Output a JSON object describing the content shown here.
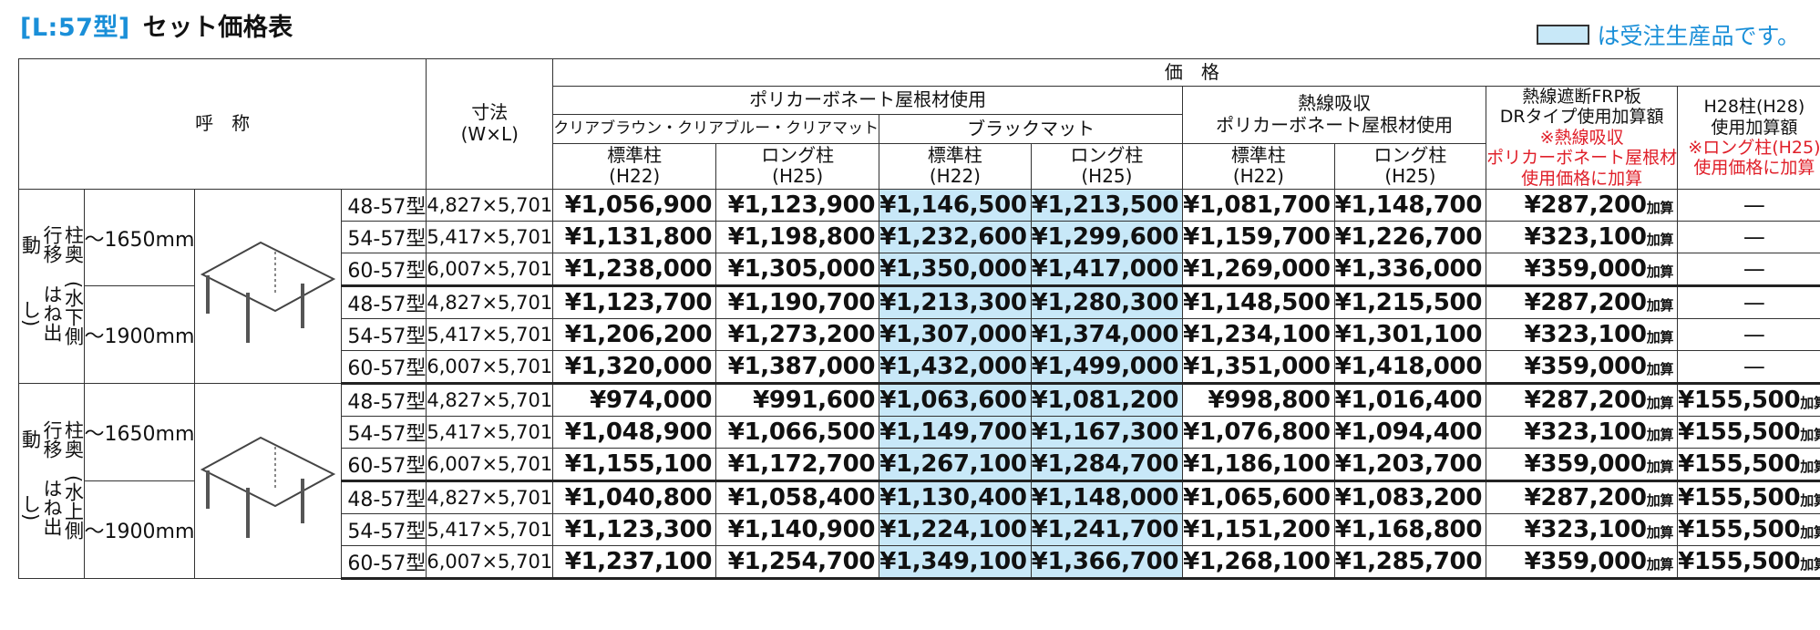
{
  "title": {
    "code": "[L:57型]",
    "name": "セット価格表"
  },
  "legend": {
    "text": "は受注生産品です。",
    "swatch_color": "#c8e8f8"
  },
  "header": {
    "yobi": "呼　称",
    "dim_line1": "寸法",
    "dim_line2": "(W×L)",
    "kakaku": "価　格",
    "poly": "ポリカーボネート屋根材使用",
    "clear": "クリアブラウン・クリアブルー・クリアマット",
    "black": "ブラックマット",
    "netsu1": "熱線吸収",
    "netsu2": "ポリカーボネート屋根材使用",
    "std1": "標準柱",
    "std2": "(H22)",
    "long1": "ロング柱",
    "long2": "(H25)",
    "frp1": "熱線遮断FRP板",
    "frp2": "DRタイプ使用加算額",
    "frp3": "※熱線吸収",
    "frp4": "ポリカーボネート屋根材",
    "frp5": "使用価格に加算",
    "h28_1": "H28柱(H28)",
    "h28_2": "使用加算額",
    "h28_3": "※ロング柱(H25)",
    "h28_4": "使用価格に加算"
  },
  "kasan": "加算",
  "groups": [
    {
      "side": "柱奥行移動 (水下側はね出し)",
      "side_a": "柱奥行移動",
      "side_b": "(水下側はね出し)",
      "subgroups": [
        {
          "range": "〜1650mm",
          "rows": [
            {
              "model": "48-57型",
              "dim": "4,827×5,701",
              "p": [
                "¥1,056,900",
                "¥1,123,900",
                "¥1,146,500",
                "¥1,213,500",
                "¥1,081,700",
                "¥1,148,700"
              ],
              "frp": "¥287,200",
              "h28": "—"
            },
            {
              "model": "54-57型",
              "dim": "5,417×5,701",
              "p": [
                "¥1,131,800",
                "¥1,198,800",
                "¥1,232,600",
                "¥1,299,600",
                "¥1,159,700",
                "¥1,226,700"
              ],
              "frp": "¥323,100",
              "h28": "—"
            },
            {
              "model": "60-57型",
              "dim": "6,007×5,701",
              "p": [
                "¥1,238,000",
                "¥1,305,000",
                "¥1,350,000",
                "¥1,417,000",
                "¥1,269,000",
                "¥1,336,000"
              ],
              "frp": "¥359,000",
              "h28": "—"
            }
          ]
        },
        {
          "range": "〜1900mm",
          "rows": [
            {
              "model": "48-57型",
              "dim": "4,827×5,701",
              "p": [
                "¥1,123,700",
                "¥1,190,700",
                "¥1,213,300",
                "¥1,280,300",
                "¥1,148,500",
                "¥1,215,500"
              ],
              "frp": "¥287,200",
              "h28": "—"
            },
            {
              "model": "54-57型",
              "dim": "5,417×5,701",
              "p": [
                "¥1,206,200",
                "¥1,273,200",
                "¥1,307,000",
                "¥1,374,000",
                "¥1,234,100",
                "¥1,301,100"
              ],
              "frp": "¥323,100",
              "h28": "—"
            },
            {
              "model": "60-57型",
              "dim": "6,007×5,701",
              "p": [
                "¥1,320,000",
                "¥1,387,000",
                "¥1,432,000",
                "¥1,499,000",
                "¥1,351,000",
                "¥1,418,000"
              ],
              "frp": "¥359,000",
              "h28": "—"
            }
          ]
        }
      ]
    },
    {
      "side": "柱奥行移動 (水上側はね出し)",
      "side_a": "柱奥行移動",
      "side_b": "(水上側はね出し)",
      "subgroups": [
        {
          "range": "〜1650mm",
          "rows": [
            {
              "model": "48-57型",
              "dim": "4,827×5,701",
              "p": [
                "¥974,000",
                "¥991,600",
                "¥1,063,600",
                "¥1,081,200",
                "¥998,800",
                "¥1,016,400"
              ],
              "frp": "¥287,200",
              "h28": "¥155,500"
            },
            {
              "model": "54-57型",
              "dim": "5,417×5,701",
              "p": [
                "¥1,048,900",
                "¥1,066,500",
                "¥1,149,700",
                "¥1,167,300",
                "¥1,076,800",
                "¥1,094,400"
              ],
              "frp": "¥323,100",
              "h28": "¥155,500"
            },
            {
              "model": "60-57型",
              "dim": "6,007×5,701",
              "p": [
                "¥1,155,100",
                "¥1,172,700",
                "¥1,267,100",
                "¥1,284,700",
                "¥1,186,100",
                "¥1,203,700"
              ],
              "frp": "¥359,000",
              "h28": "¥155,500"
            }
          ]
        },
        {
          "range": "〜1900mm",
          "rows": [
            {
              "model": "48-57型",
              "dim": "4,827×5,701",
              "p": [
                "¥1,040,800",
                "¥1,058,400",
                "¥1,130,400",
                "¥1,148,000",
                "¥1,065,600",
                "¥1,083,200"
              ],
              "frp": "¥287,200",
              "h28": "¥155,500"
            },
            {
              "model": "54-57型",
              "dim": "5,417×5,701",
              "p": [
                "¥1,123,300",
                "¥1,140,900",
                "¥1,224,100",
                "¥1,241,700",
                "¥1,151,200",
                "¥1,168,800"
              ],
              "frp": "¥323,100",
              "h28": "¥155,500"
            },
            {
              "model": "60-57型",
              "dim": "6,007×5,701",
              "p": [
                "¥1,237,100",
                "¥1,254,700",
                "¥1,349,100",
                "¥1,366,700",
                "¥1,268,100",
                "¥1,285,700"
              ],
              "frp": "¥359,000",
              "h28": "¥155,500"
            }
          ]
        }
      ]
    }
  ]
}
